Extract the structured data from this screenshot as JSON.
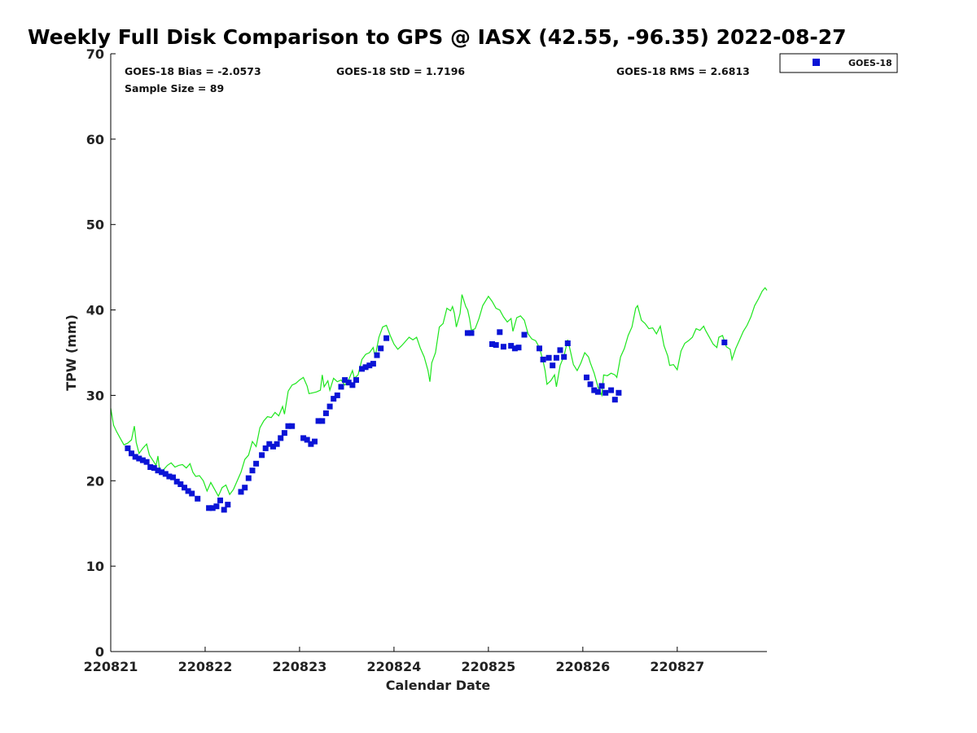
{
  "chart_data": {
    "type": "scatter",
    "title": "Weekly Full Disk Comparison to GPS @ IASX (42.55, -96.35) 2022-08-27",
    "xlabel": "Calendar Date",
    "ylabel": "TPW (mm)",
    "ylim": [
      0,
      70
    ],
    "xlim": [
      0,
      6.95
    ],
    "x_unit": "days since 220821",
    "yticks": [
      0,
      10,
      20,
      30,
      40,
      50,
      60,
      70
    ],
    "xticks": [
      {
        "x": 0,
        "label": "220821"
      },
      {
        "x": 1,
        "label": "220822"
      },
      {
        "x": 2,
        "label": "220823"
      },
      {
        "x": 3,
        "label": "220824"
      },
      {
        "x": 4,
        "label": "220825"
      },
      {
        "x": 5,
        "label": "220826"
      },
      {
        "x": 6,
        "label": "220827"
      }
    ],
    "stats": {
      "bias": "GOES-18 Bias = -2.0573",
      "std": "GOES-18 StD = 1.7196",
      "rms": "GOES-18 RMS = 2.6813",
      "sample": "Sample Size = 89"
    },
    "legend": {
      "position": "top-right",
      "label": "GOES-18"
    },
    "colors": {
      "goes": "#0a14d6",
      "gps": "#1ee61e"
    },
    "series": [
      {
        "name": "GOES-18",
        "kind": "markers",
        "points": [
          [
            0.18,
            23.8
          ],
          [
            0.22,
            23.2
          ],
          [
            0.26,
            22.8
          ],
          [
            0.3,
            22.6
          ],
          [
            0.34,
            22.4
          ],
          [
            0.38,
            22.2
          ],
          [
            0.42,
            21.6
          ],
          [
            0.46,
            21.5
          ],
          [
            0.5,
            21.2
          ],
          [
            0.54,
            21.0
          ],
          [
            0.58,
            20.8
          ],
          [
            0.62,
            20.5
          ],
          [
            0.66,
            20.4
          ],
          [
            0.7,
            19.9
          ],
          [
            0.74,
            19.6
          ],
          [
            0.78,
            19.2
          ],
          [
            0.82,
            18.8
          ],
          [
            0.86,
            18.5
          ],
          [
            0.92,
            17.9
          ],
          [
            1.04,
            16.8
          ],
          [
            1.08,
            16.8
          ],
          [
            1.12,
            17.0
          ],
          [
            1.16,
            17.7
          ],
          [
            1.2,
            16.6
          ],
          [
            1.24,
            17.2
          ],
          [
            1.38,
            18.7
          ],
          [
            1.42,
            19.2
          ],
          [
            1.46,
            20.3
          ],
          [
            1.5,
            21.2
          ],
          [
            1.54,
            22.0
          ],
          [
            1.6,
            23.0
          ],
          [
            1.64,
            23.8
          ],
          [
            1.68,
            24.3
          ],
          [
            1.72,
            24.0
          ],
          [
            1.76,
            24.3
          ],
          [
            1.8,
            25.0
          ],
          [
            1.84,
            25.6
          ],
          [
            1.88,
            26.4
          ],
          [
            1.92,
            26.4
          ],
          [
            2.04,
            25.0
          ],
          [
            2.08,
            24.8
          ],
          [
            2.12,
            24.3
          ],
          [
            2.16,
            24.6
          ],
          [
            2.2,
            27.0
          ],
          [
            2.24,
            27.0
          ],
          [
            2.28,
            27.9
          ],
          [
            2.32,
            28.7
          ],
          [
            2.36,
            29.6
          ],
          [
            2.4,
            30.0
          ],
          [
            2.44,
            31.0
          ],
          [
            2.48,
            31.8
          ],
          [
            2.52,
            31.5
          ],
          [
            2.56,
            31.2
          ],
          [
            2.6,
            31.8
          ],
          [
            2.66,
            33.1
          ],
          [
            2.7,
            33.3
          ],
          [
            2.74,
            33.5
          ],
          [
            2.78,
            33.7
          ],
          [
            2.82,
            34.7
          ],
          [
            2.86,
            35.5
          ],
          [
            2.92,
            36.7
          ],
          [
            3.78,
            37.3
          ],
          [
            3.82,
            37.3
          ],
          [
            4.04,
            36.0
          ],
          [
            4.08,
            35.9
          ],
          [
            4.12,
            37.4
          ],
          [
            4.16,
            35.7
          ],
          [
            4.24,
            35.8
          ],
          [
            4.28,
            35.5
          ],
          [
            4.32,
            35.6
          ],
          [
            4.38,
            37.1
          ],
          [
            4.54,
            35.5
          ],
          [
            4.58,
            34.2
          ],
          [
            4.64,
            34.4
          ],
          [
            4.68,
            33.5
          ],
          [
            4.72,
            34.4
          ],
          [
            4.76,
            35.3
          ],
          [
            4.8,
            34.5
          ],
          [
            4.84,
            36.1
          ],
          [
            5.04,
            32.1
          ],
          [
            5.08,
            31.3
          ],
          [
            5.12,
            30.6
          ],
          [
            5.16,
            30.4
          ],
          [
            5.2,
            31.1
          ],
          [
            5.24,
            30.3
          ],
          [
            5.3,
            30.6
          ],
          [
            5.34,
            29.5
          ],
          [
            5.38,
            30.3
          ],
          [
            6.5,
            36.2
          ]
        ]
      },
      {
        "name": "GPS",
        "kind": "line",
        "points": [
          [
            0.0,
            28.5
          ],
          [
            0.03,
            26.5
          ],
          [
            0.06,
            25.8
          ],
          [
            0.1,
            25.0
          ],
          [
            0.14,
            24.2
          ],
          [
            0.18,
            24.4
          ],
          [
            0.22,
            24.8
          ],
          [
            0.25,
            26.4
          ],
          [
            0.27,
            24.5
          ],
          [
            0.3,
            23.2
          ],
          [
            0.34,
            23.8
          ],
          [
            0.38,
            24.3
          ],
          [
            0.41,
            23.0
          ],
          [
            0.44,
            22.5
          ],
          [
            0.48,
            21.8
          ],
          [
            0.5,
            22.9
          ],
          [
            0.52,
            21.0
          ],
          [
            0.56,
            21.3
          ],
          [
            0.6,
            21.8
          ],
          [
            0.64,
            22.1
          ],
          [
            0.68,
            21.6
          ],
          [
            0.72,
            21.8
          ],
          [
            0.76,
            21.9
          ],
          [
            0.8,
            21.5
          ],
          [
            0.84,
            22.0
          ],
          [
            0.87,
            21.0
          ],
          [
            0.9,
            20.5
          ],
          [
            0.94,
            20.6
          ],
          [
            0.98,
            20.0
          ],
          [
            1.02,
            18.8
          ],
          [
            1.06,
            19.8
          ],
          [
            1.1,
            19.0
          ],
          [
            1.14,
            18.2
          ],
          [
            1.18,
            19.2
          ],
          [
            1.22,
            19.5
          ],
          [
            1.26,
            18.4
          ],
          [
            1.3,
            19.0
          ],
          [
            1.34,
            20.0
          ],
          [
            1.38,
            21.0
          ],
          [
            1.42,
            22.5
          ],
          [
            1.46,
            23.0
          ],
          [
            1.5,
            24.6
          ],
          [
            1.54,
            24.0
          ],
          [
            1.58,
            26.2
          ],
          [
            1.62,
            27.0
          ],
          [
            1.66,
            27.5
          ],
          [
            1.7,
            27.4
          ],
          [
            1.74,
            28.0
          ],
          [
            1.78,
            27.6
          ],
          [
            1.82,
            28.7
          ],
          [
            1.84,
            27.8
          ],
          [
            1.88,
            30.5
          ],
          [
            1.92,
            31.2
          ],
          [
            1.96,
            31.4
          ],
          [
            2.0,
            31.8
          ],
          [
            2.04,
            32.1
          ],
          [
            2.08,
            31.1
          ],
          [
            2.1,
            30.2
          ],
          [
            2.14,
            30.3
          ],
          [
            2.18,
            30.4
          ],
          [
            2.22,
            30.6
          ],
          [
            2.24,
            32.4
          ],
          [
            2.26,
            31.0
          ],
          [
            2.3,
            31.7
          ],
          [
            2.32,
            30.6
          ],
          [
            2.36,
            32.0
          ],
          [
            2.4,
            31.6
          ],
          [
            2.44,
            31.8
          ],
          [
            2.48,
            31.2
          ],
          [
            2.52,
            31.8
          ],
          [
            2.56,
            32.9
          ],
          [
            2.58,
            32.0
          ],
          [
            2.62,
            32.4
          ],
          [
            2.66,
            34.2
          ],
          [
            2.7,
            34.8
          ],
          [
            2.74,
            35.0
          ],
          [
            2.78,
            35.6
          ],
          [
            2.8,
            34.5
          ],
          [
            2.84,
            36.8
          ],
          [
            2.88,
            38.0
          ],
          [
            2.92,
            38.2
          ],
          [
            2.96,
            37.0
          ],
          [
            3.0,
            36.0
          ],
          [
            3.04,
            35.4
          ],
          [
            3.08,
            35.8
          ],
          [
            3.12,
            36.3
          ],
          [
            3.16,
            36.8
          ],
          [
            3.2,
            36.5
          ],
          [
            3.24,
            36.8
          ],
          [
            3.28,
            35.5
          ],
          [
            3.32,
            34.5
          ],
          [
            3.36,
            32.9
          ],
          [
            3.38,
            31.6
          ],
          [
            3.4,
            33.8
          ],
          [
            3.44,
            35.0
          ],
          [
            3.48,
            38.0
          ],
          [
            3.52,
            38.4
          ],
          [
            3.56,
            40.2
          ],
          [
            3.6,
            39.9
          ],
          [
            3.62,
            40.4
          ],
          [
            3.64,
            39.6
          ],
          [
            3.66,
            38.0
          ],
          [
            3.7,
            39.6
          ],
          [
            3.72,
            41.8
          ],
          [
            3.76,
            40.4
          ],
          [
            3.78,
            40.0
          ],
          [
            3.8,
            39.0
          ],
          [
            3.82,
            37.6
          ],
          [
            3.86,
            37.8
          ],
          [
            3.9,
            39.0
          ],
          [
            3.94,
            40.5
          ],
          [
            4.0,
            41.6
          ],
          [
            4.04,
            41.0
          ],
          [
            4.08,
            40.2
          ],
          [
            4.12,
            40.0
          ],
          [
            4.16,
            39.2
          ],
          [
            4.2,
            38.6
          ],
          [
            4.24,
            39.0
          ],
          [
            4.26,
            37.5
          ],
          [
            4.3,
            39.1
          ],
          [
            4.34,
            39.3
          ],
          [
            4.38,
            38.8
          ],
          [
            4.42,
            37.2
          ],
          [
            4.46,
            36.6
          ],
          [
            4.5,
            36.4
          ],
          [
            4.54,
            35.6
          ],
          [
            4.58,
            34.0
          ],
          [
            4.6,
            32.9
          ],
          [
            4.62,
            31.3
          ],
          [
            4.66,
            31.7
          ],
          [
            4.7,
            32.4
          ],
          [
            4.72,
            31.0
          ],
          [
            4.76,
            33.5
          ],
          [
            4.8,
            34.6
          ],
          [
            4.84,
            36.5
          ],
          [
            4.86,
            35.6
          ],
          [
            4.9,
            33.6
          ],
          [
            4.94,
            32.9
          ],
          [
            4.98,
            33.8
          ],
          [
            5.02,
            35.0
          ],
          [
            5.06,
            34.5
          ],
          [
            5.08,
            33.8
          ],
          [
            5.12,
            32.6
          ],
          [
            5.16,
            31.0
          ],
          [
            5.2,
            30.0
          ],
          [
            5.22,
            32.4
          ],
          [
            5.26,
            32.3
          ],
          [
            5.3,
            32.6
          ],
          [
            5.34,
            32.4
          ],
          [
            5.36,
            32.1
          ],
          [
            5.4,
            34.5
          ],
          [
            5.44,
            35.5
          ],
          [
            5.48,
            37.0
          ],
          [
            5.52,
            38.0
          ],
          [
            5.56,
            40.2
          ],
          [
            5.58,
            40.5
          ],
          [
            5.62,
            38.8
          ],
          [
            5.66,
            38.4
          ],
          [
            5.7,
            37.8
          ],
          [
            5.74,
            37.9
          ],
          [
            5.78,
            37.2
          ],
          [
            5.82,
            38.1
          ],
          [
            5.86,
            35.8
          ],
          [
            5.9,
            34.6
          ],
          [
            5.92,
            33.5
          ],
          [
            5.96,
            33.6
          ],
          [
            6.0,
            33.0
          ],
          [
            6.04,
            35.2
          ],
          [
            6.08,
            36.1
          ],
          [
            6.12,
            36.4
          ],
          [
            6.16,
            36.8
          ],
          [
            6.2,
            37.8
          ],
          [
            6.24,
            37.6
          ],
          [
            6.28,
            38.1
          ],
          [
            6.3,
            37.6
          ],
          [
            6.34,
            36.8
          ],
          [
            6.38,
            36.0
          ],
          [
            6.42,
            35.6
          ],
          [
            6.44,
            36.8
          ],
          [
            6.48,
            37.0
          ],
          [
            6.52,
            35.7
          ],
          [
            6.56,
            35.4
          ],
          [
            6.58,
            34.2
          ],
          [
            6.62,
            35.5
          ],
          [
            6.66,
            36.5
          ],
          [
            6.7,
            37.5
          ],
          [
            6.74,
            38.2
          ],
          [
            6.78,
            39.2
          ],
          [
            6.82,
            40.5
          ],
          [
            6.86,
            41.3
          ],
          [
            6.9,
            42.2
          ],
          [
            6.93,
            42.6
          ],
          [
            6.95,
            42.3
          ]
        ]
      }
    ]
  }
}
